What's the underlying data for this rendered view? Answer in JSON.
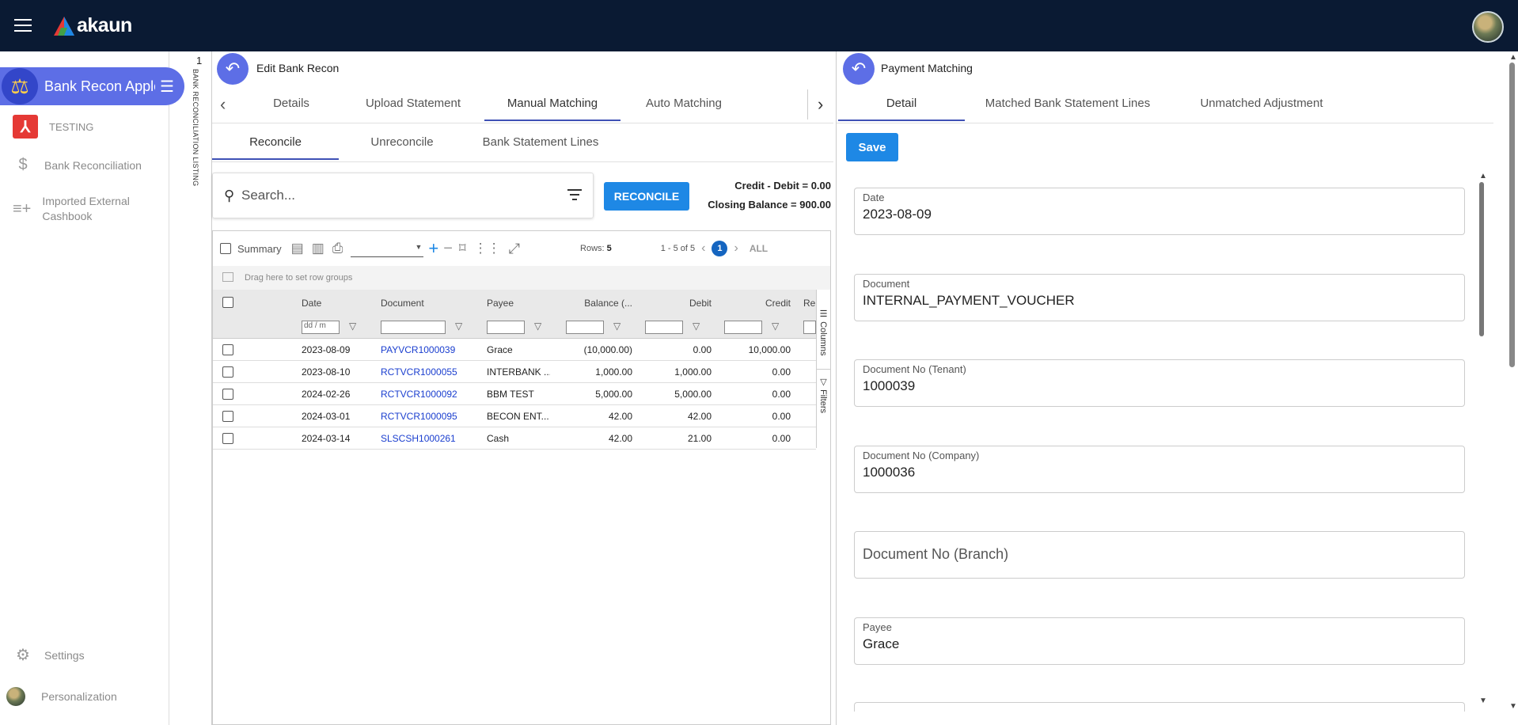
{
  "brand": {
    "name": "akaun"
  },
  "sidebar": {
    "app_title": "Bank Recon Apple",
    "tenant": "TESTING",
    "items": [
      {
        "label": "Bank Reconciliation",
        "icon": "dollar-icon"
      },
      {
        "label": "Imported External Cashbook",
        "icon": "playlist-add-icon"
      }
    ],
    "settings": "Settings",
    "personalization": "Personalization"
  },
  "listing_strip": {
    "number": "1",
    "text": "BANK RECONCILIATION LISTING"
  },
  "left_panel": {
    "title": "Edit Bank Recon",
    "tabs": [
      "Details",
      "Upload Statement",
      "Manual Matching",
      "Auto Matching"
    ],
    "active_tab": "Manual Matching",
    "subtabs": [
      "Reconcile",
      "Unreconcile",
      "Bank Statement Lines"
    ],
    "active_subtab": "Reconcile",
    "search_placeholder": "Search...",
    "reconcile_button": "RECONCILE",
    "credit_debit": "Credit - Debit  = 0.00",
    "closing_balance": "Closing Balance = 900.00",
    "toolbar": {
      "summary": "Summary",
      "rows_label": "Rows:",
      "rows_value": "5",
      "pagination": "1 - 5 of 5",
      "current_page": "1",
      "all": "ALL"
    },
    "drag_hint": "Drag here to set row groups",
    "columns": [
      "Date",
      "Document",
      "Payee",
      "Balance (...",
      "Debit",
      "Credit",
      "Re"
    ],
    "date_filter_placeholder": "dd / m",
    "rows": [
      {
        "date": "2023-08-09",
        "document": "PAYVCR1000039",
        "payee": "Grace",
        "balance": "(10,000.00)",
        "debit": "0.00",
        "credit": "10,000.00"
      },
      {
        "date": "2023-08-10",
        "document": "RCTVCR1000055",
        "payee": "INTERBANK ...",
        "balance": "1,000.00",
        "debit": "1,000.00",
        "credit": "0.00"
      },
      {
        "date": "2024-02-26",
        "document": "RCTVCR1000092",
        "payee": "BBM TEST",
        "balance": "5,000.00",
        "debit": "5,000.00",
        "credit": "0.00"
      },
      {
        "date": "2024-03-01",
        "document": "RCTVCR1000095",
        "payee": "BECON ENT...",
        "balance": "42.00",
        "debit": "42.00",
        "credit": "0.00"
      },
      {
        "date": "2024-03-14",
        "document": "SLSCSH1000261",
        "payee": "Cash",
        "balance": "42.00",
        "debit": "21.00",
        "credit": "0.00"
      }
    ],
    "side_tools": [
      "Columns",
      "Filters"
    ]
  },
  "right_panel": {
    "title": "Payment Matching",
    "tabs": [
      "Detail",
      "Matched Bank Statement Lines",
      "Unmatched Adjustment"
    ],
    "active_tab": "Detail",
    "save_button": "Save",
    "fields": [
      {
        "label": "Date",
        "value": "2023-08-09"
      },
      {
        "label": "Document",
        "value": "INTERNAL_PAYMENT_VOUCHER"
      },
      {
        "label": "Document No (Tenant)",
        "value": "1000039"
      },
      {
        "label": "Document No (Company)",
        "value": "1000036"
      },
      {
        "label": "Document No (Branch)",
        "value": ""
      },
      {
        "label": "Payee",
        "value": "Grace"
      }
    ]
  }
}
